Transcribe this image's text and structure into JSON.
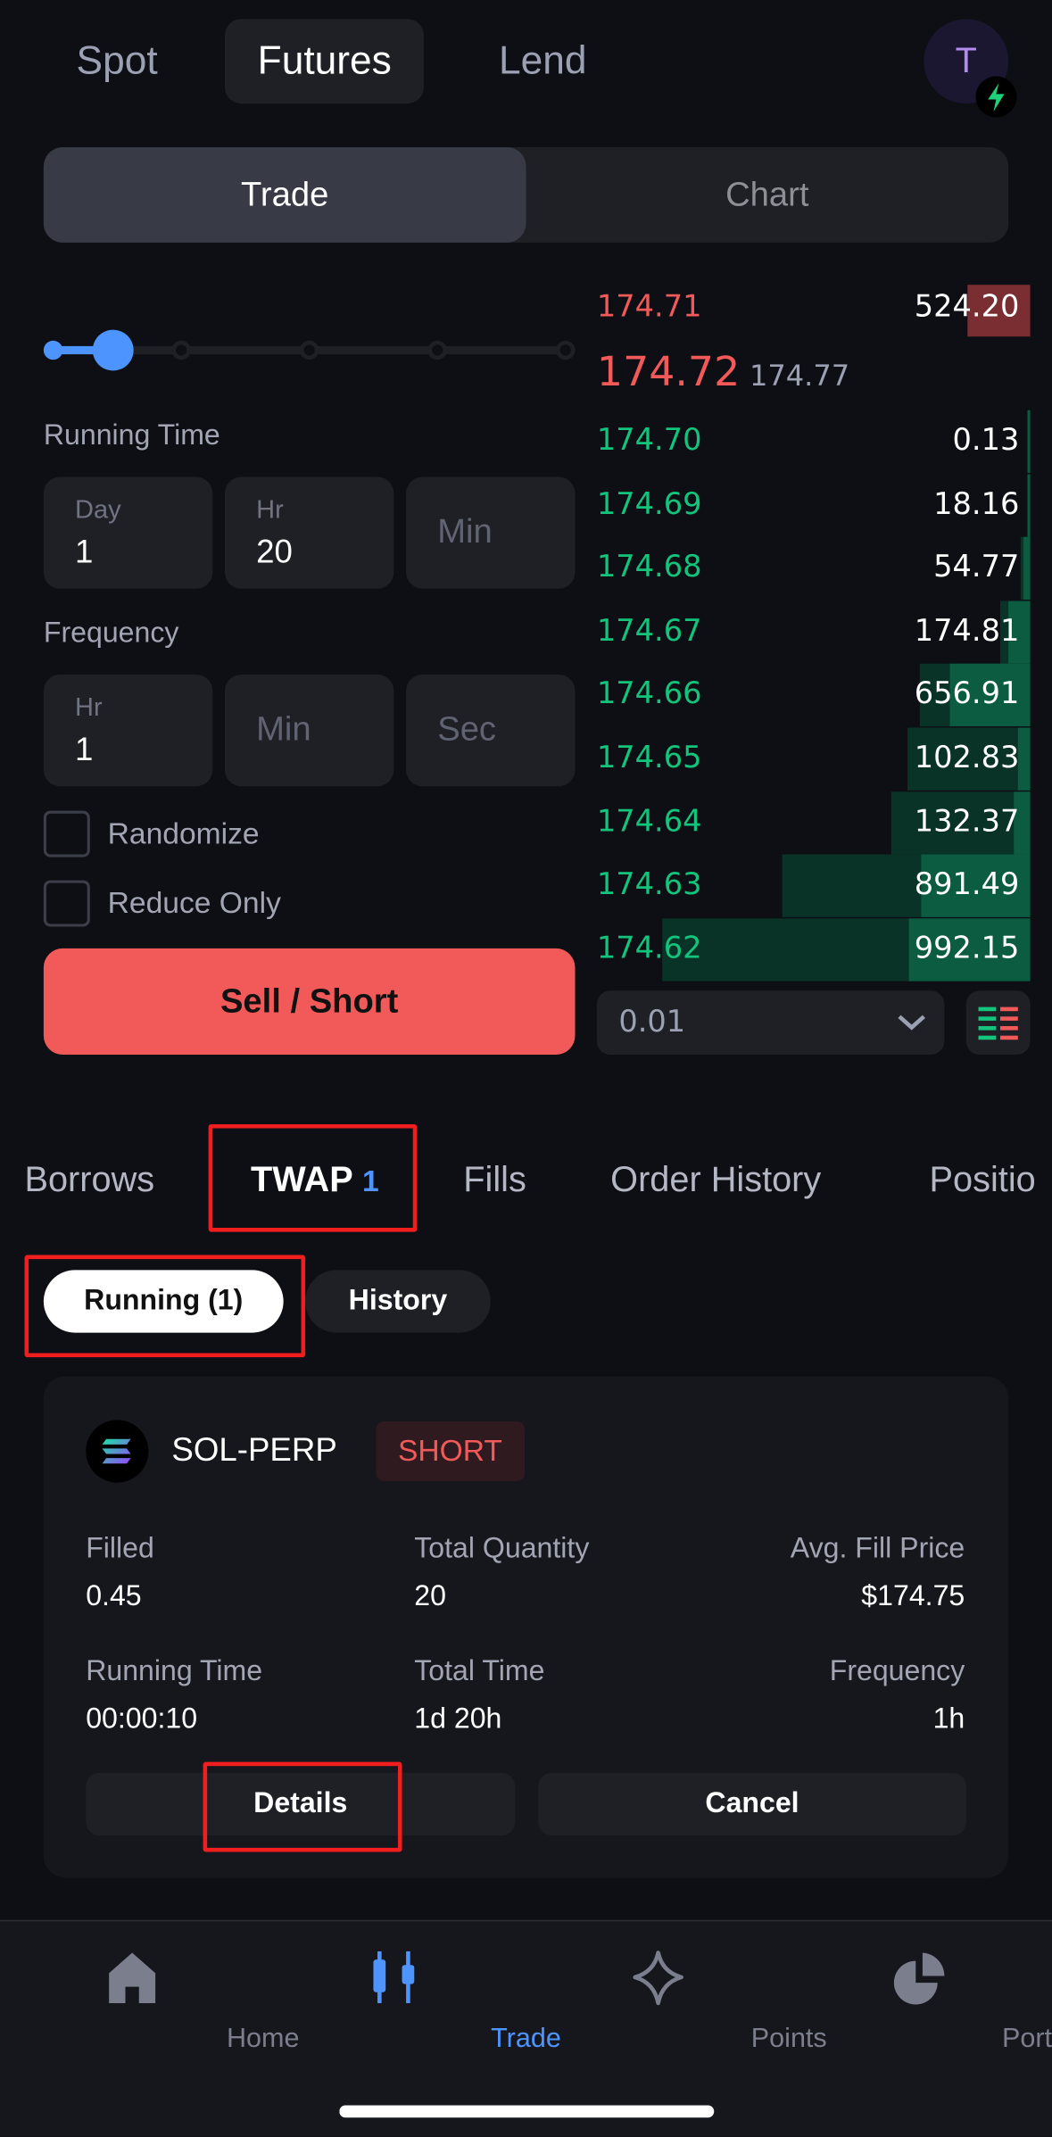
{
  "top_tabs": [
    "Spot",
    "Futures",
    "Lend"
  ],
  "active_top_tab": "Futures",
  "avatar": {
    "letter": "T",
    "badge_icon": "lightning-icon"
  },
  "view_toggle": {
    "trade": "Trade",
    "chart": "Chart",
    "active": "Trade"
  },
  "slider": {
    "value_percent": 12.5,
    "steps": 5
  },
  "running_time": {
    "label": "Running Time",
    "day_label": "Day",
    "day_value": "1",
    "hr_label": "Hr",
    "hr_value": "20",
    "min_placeholder": "Min"
  },
  "frequency": {
    "label": "Frequency",
    "hr_label": "Hr",
    "hr_value": "1",
    "min_placeholder": "Min",
    "sec_placeholder": "Sec"
  },
  "randomize": {
    "label": "Randomize",
    "checked": false
  },
  "reduce_only": {
    "label": "Reduce Only",
    "checked": false
  },
  "submit_label": "Sell / Short",
  "orderbook": {
    "ask": {
      "price": "174.71",
      "size": "524.20"
    },
    "mark_price": "174.72",
    "index_price": "174.77",
    "bids": [
      {
        "price": "174.70",
        "size": "0.13"
      },
      {
        "price": "174.69",
        "size": "18.16"
      },
      {
        "price": "174.68",
        "size": "54.77"
      },
      {
        "price": "174.67",
        "size": "174.81"
      },
      {
        "price": "174.66",
        "size": "656.91"
      },
      {
        "price": "174.65",
        "size": "102.83"
      },
      {
        "price": "174.64",
        "size": "132.37"
      },
      {
        "price": "174.63",
        "size": "891.49"
      },
      {
        "price": "174.62",
        "size": "992.15"
      }
    ],
    "tick_size": "0.01",
    "colors": {
      "bid": "#12c47c",
      "ask": "#f25a5a"
    }
  },
  "bottom_tabs": [
    {
      "label": "Borrows"
    },
    {
      "label": "TWAP",
      "count": "1"
    },
    {
      "label": "Fills"
    },
    {
      "label": "Order History"
    },
    {
      "label": "Positio"
    }
  ],
  "sub_tabs": {
    "running": "Running (1)",
    "history": "History"
  },
  "twap_order": {
    "market": "SOL-PERP",
    "side": "SHORT",
    "filled_label": "Filled",
    "filled": "0.45",
    "total_qty_label": "Total Quantity",
    "total_qty": "20",
    "avg_price_label": "Avg. Fill Price",
    "avg_price": "$174.75",
    "running_time_label": "Running Time",
    "running_time": "00:00:10",
    "total_time_label": "Total Time",
    "total_time": "1d 20h",
    "frequency_label": "Frequency",
    "frequency": "1h",
    "details_label": "Details",
    "cancel_label": "Cancel"
  },
  "nav": [
    {
      "label": "Home",
      "icon": "home-icon"
    },
    {
      "label": "Trade",
      "icon": "candlestick-icon",
      "active": true
    },
    {
      "label": "Points",
      "icon": "sparkle-icon"
    },
    {
      "label": "Portfolio",
      "icon": "pie-chart-icon"
    }
  ]
}
